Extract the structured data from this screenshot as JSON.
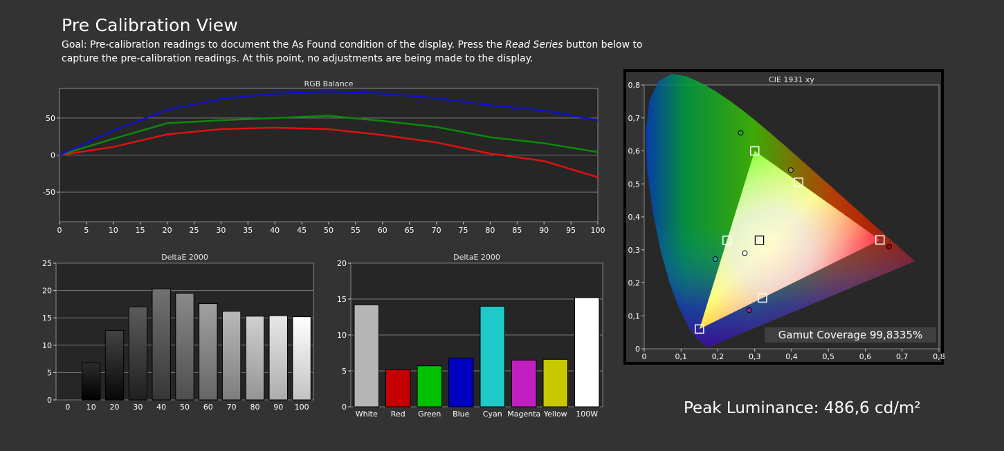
{
  "page": {
    "title": "Pre Calibration View",
    "goal_prefix": "Goal: Pre-calibration readings to document the As Found condition of the display. Press the ",
    "goal_button": "Read Series",
    "goal_suffix": " button below to capture the pre-calibration readings. At this point, no adjustments are being made to the display.",
    "peak_luminance": "Peak Luminance: 486,6 cd/m²",
    "gamut_coverage": "Gamut Coverage 99,8335%"
  },
  "colors": {
    "background": "#333333",
    "red": "#e01010",
    "green": "#0a8a0a",
    "blue": "#1010cc"
  },
  "chart_data": [
    {
      "type": "line",
      "title": "RGB Balance",
      "x": [
        0,
        10,
        20,
        30,
        40,
        50,
        60,
        70,
        80,
        90,
        100
      ],
      "xticks": [
        0,
        5,
        10,
        15,
        20,
        25,
        30,
        35,
        40,
        45,
        50,
        55,
        60,
        65,
        70,
        75,
        80,
        85,
        90,
        95,
        100
      ],
      "yticks": [
        -50,
        0,
        50
      ],
      "ylim": [
        -90,
        90
      ],
      "xlim": [
        0,
        100
      ],
      "grid": true,
      "series": [
        {
          "color": "red",
          "values": [
            0,
            11,
            28,
            35,
            37,
            35,
            27,
            17,
            2,
            -8,
            -30
          ]
        },
        {
          "color": "green",
          "values": [
            0,
            22,
            43,
            47,
            50,
            53,
            46,
            38,
            24,
            16,
            4
          ]
        },
        {
          "color": "blue",
          "values": [
            0,
            33,
            61,
            76,
            83,
            86,
            83,
            77,
            67,
            60,
            47
          ]
        }
      ]
    },
    {
      "type": "bar",
      "title": "DeltaE 2000",
      "categories": [
        "0",
        "10",
        "20",
        "30",
        "40",
        "50",
        "60",
        "70",
        "80",
        "90",
        "100"
      ],
      "values": [
        0,
        6.8,
        12.7,
        17.0,
        20.3,
        19.5,
        17.6,
        16.2,
        15.3,
        15.4,
        15.2
      ],
      "yticks": [
        0,
        5,
        10,
        15,
        20,
        25
      ],
      "ylim": [
        0,
        25
      ],
      "grid": true
    },
    {
      "type": "bar",
      "title": "DeltaE 2000",
      "categories": [
        "White",
        "Red",
        "Green",
        "Blue",
        "Cyan",
        "Magenta",
        "Yellow",
        "100W"
      ],
      "values": [
        14.2,
        5.2,
        5.7,
        6.8,
        14.0,
        6.5,
        6.6,
        15.2
      ],
      "bar_colors": [
        "#b5b5b5",
        "#c40000",
        "#00c000",
        "#0000c0",
        "#20c8c8",
        "#c020c0",
        "#c8c800",
        "#ffffff"
      ],
      "yticks": [
        0,
        5,
        10,
        15,
        20
      ],
      "ylim": [
        0,
        20
      ],
      "grid": true
    },
    {
      "type": "scatter",
      "title": "CIE 1931 xy",
      "xticks": [
        "0",
        "0,1",
        "0,2",
        "0,3",
        "0,4",
        "0,5",
        "0,6",
        "0,7",
        "0,8"
      ],
      "yticks": [
        "0",
        "0,1",
        "0,2",
        "0,3",
        "0,4",
        "0,5",
        "0,6",
        "0,7",
        "0,8"
      ],
      "xlim": [
        0,
        0.8
      ],
      "ylim": [
        0,
        0.8
      ],
      "targets": [
        {
          "name": "R",
          "x": 0.64,
          "y": 0.33
        },
        {
          "name": "G",
          "x": 0.3,
          "y": 0.6
        },
        {
          "name": "B",
          "x": 0.15,
          "y": 0.06
        },
        {
          "name": "C",
          "x": 0.225,
          "y": 0.329
        },
        {
          "name": "M",
          "x": 0.321,
          "y": 0.154
        },
        {
          "name": "Y",
          "x": 0.419,
          "y": 0.505
        },
        {
          "name": "W",
          "x": 0.3127,
          "y": 0.329
        }
      ],
      "measured": [
        {
          "name": "R",
          "x": 0.665,
          "y": 0.31,
          "color": "#b00000"
        },
        {
          "name": "G",
          "x": 0.262,
          "y": 0.655,
          "color": "#30a030"
        },
        {
          "name": "C",
          "x": 0.193,
          "y": 0.272,
          "color": "#20a0a0"
        },
        {
          "name": "M",
          "x": 0.285,
          "y": 0.117,
          "color": "#a02090"
        },
        {
          "name": "Y",
          "x": 0.398,
          "y": 0.542,
          "color": "#a0a020"
        },
        {
          "name": "W",
          "x": 0.273,
          "y": 0.29,
          "color": "#ffffff"
        }
      ]
    }
  ]
}
